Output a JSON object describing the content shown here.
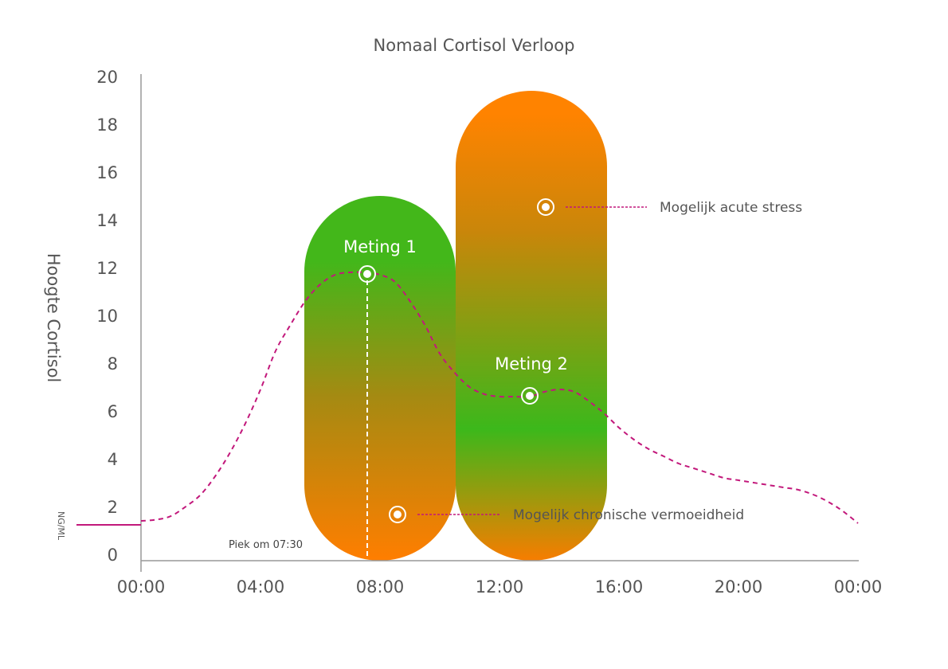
{
  "chart_data": {
    "type": "line",
    "title": "Nomaal Cortisol Verloop",
    "ylabel": "Hoogte Cortisol",
    "unit": "NG/ML",
    "ylim": [
      0,
      20
    ],
    "yticks": [
      0,
      2,
      4,
      6,
      8,
      10,
      12,
      14,
      16,
      18,
      20
    ],
    "xticks": [
      "00:00",
      "04:00",
      "08:00",
      "12:00",
      "16:00",
      "20:00",
      "00:00"
    ],
    "xlim_hours": [
      0,
      24
    ],
    "curve": {
      "x_hours": [
        0,
        0.5,
        1,
        1.5,
        2,
        2.5,
        3,
        3.5,
        4,
        4.5,
        5,
        5.5,
        6,
        6.5,
        7,
        7.5,
        8,
        8.5,
        9,
        9.5,
        10,
        10.5,
        11,
        11.5,
        12,
        12.5,
        13,
        13.5,
        14,
        14.5,
        15,
        15.5,
        16,
        16.5,
        17,
        17.5,
        18,
        18.5,
        19,
        19.5,
        20,
        20.5,
        21,
        21.5,
        22,
        22.5,
        23,
        23.5,
        24
      ],
      "y": [
        1.4,
        1.45,
        1.6,
        2.0,
        2.5,
        3.3,
        4.3,
        5.5,
        6.9,
        8.5,
        9.6,
        10.6,
        11.3,
        11.7,
        11.8,
        11.8,
        11.7,
        11.4,
        10.6,
        9.6,
        8.4,
        7.6,
        7.0,
        6.7,
        6.6,
        6.6,
        6.6,
        6.8,
        6.9,
        6.8,
        6.4,
        5.9,
        5.3,
        4.8,
        4.4,
        4.1,
        3.8,
        3.6,
        3.4,
        3.2,
        3.1,
        3.0,
        2.9,
        2.8,
        2.7,
        2.5,
        2.2,
        1.8,
        1.3
      ],
      "baseline": 1.4,
      "color": "#c2187b"
    },
    "bands": [
      {
        "name": "meting1_band",
        "x_hours": [
          5.5,
          10.5
        ],
        "y_range": [
          0,
          15
        ],
        "top_color": "#43b71a",
        "bottom_color": "#ff7e00"
      },
      {
        "name": "meting2_band",
        "x_hours": [
          10.5,
          15.5
        ],
        "y_range": [
          0,
          19.7
        ],
        "top_color": "#ff8300",
        "mid_color": "#3cb81b",
        "bottom_color": "#f77d00"
      }
    ],
    "markers": [
      {
        "label": "Meting 1",
        "x_hours": 7.5,
        "y": 11.8
      },
      {
        "label": "Meting 2",
        "x_hours": 13.0,
        "y": 6.7
      },
      {
        "label": "Mogelijk acute stress",
        "x_hours": 13.5,
        "y": 14.6
      },
      {
        "label": "Mogelijk chronische vermoeidheid",
        "x_hours": 8.6,
        "y": 1.8
      }
    ],
    "peak_label": "Piek  om 07:30",
    "peak_x_hours": 7.5
  }
}
